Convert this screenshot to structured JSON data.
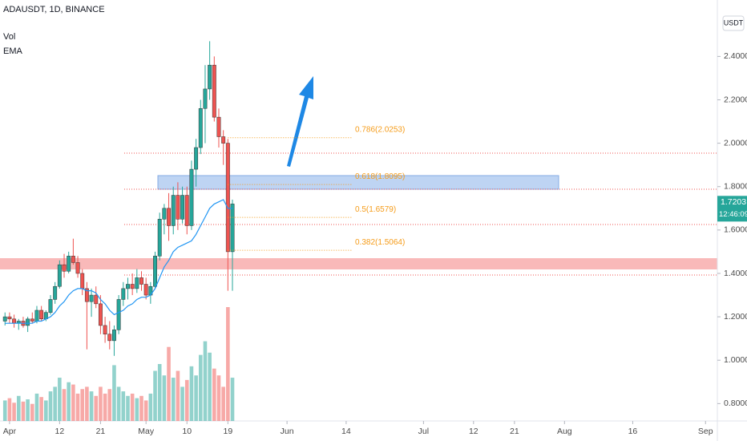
{
  "chart_data": {
    "type": "candlestick",
    "title": "ADAUSDT, 1D, BINANCE",
    "indicators": [
      "Vol",
      "EMA"
    ],
    "currency": "USDT",
    "last_price": {
      "value": 1.7203,
      "label": "1.7203"
    },
    "countdown": "12:46:09",
    "up_color": "#26a69a",
    "down_color": "#ef5350",
    "x": [
      -1,
      0,
      1,
      2,
      3,
      4,
      5,
      6,
      7,
      8,
      9,
      10,
      11,
      12,
      13,
      14,
      15,
      16,
      17,
      18,
      19,
      20,
      21,
      22,
      23,
      24,
      25,
      26,
      27,
      28,
      29,
      30,
      31,
      32,
      33,
      34,
      35,
      36,
      37,
      38,
      39,
      40,
      41,
      42,
      43,
      44,
      45,
      46,
      47,
      48,
      49
    ],
    "open": [
      1.18,
      1.2,
      1.19,
      1.17,
      1.18,
      1.16,
      1.19,
      1.18,
      1.23,
      1.19,
      1.22,
      1.28,
      1.34,
      1.44,
      1.41,
      1.48,
      1.45,
      1.4,
      1.33,
      1.27,
      1.3,
      1.26,
      1.16,
      1.12,
      1.09,
      1.14,
      1.28,
      1.33,
      1.35,
      1.33,
      1.38,
      1.35,
      1.3,
      1.34,
      1.48,
      1.65,
      1.7,
      1.62,
      1.76,
      1.65,
      1.76,
      1.62,
      1.88,
      1.98,
      2.16,
      2.25,
      2.36,
      2.12,
      2.03,
      2.0,
      1.5
    ],
    "high": [
      1.22,
      1.22,
      1.21,
      1.19,
      1.2,
      1.2,
      1.22,
      1.25,
      1.25,
      1.23,
      1.3,
      1.36,
      1.46,
      1.49,
      1.5,
      1.56,
      1.48,
      1.42,
      1.36,
      1.33,
      1.34,
      1.3,
      1.2,
      1.18,
      1.16,
      1.3,
      1.36,
      1.38,
      1.4,
      1.42,
      1.41,
      1.38,
      1.36,
      1.5,
      1.68,
      1.72,
      1.77,
      1.8,
      1.82,
      1.8,
      1.8,
      1.92,
      2.02,
      2.2,
      2.36,
      2.47,
      2.4,
      2.16,
      2.06,
      2.02,
      1.74
    ],
    "low": [
      1.16,
      1.17,
      1.15,
      1.14,
      1.15,
      1.13,
      1.17,
      1.17,
      1.18,
      1.18,
      1.21,
      1.26,
      1.33,
      1.38,
      1.4,
      1.44,
      1.38,
      1.3,
      1.05,
      1.2,
      1.24,
      1.12,
      1.08,
      1.05,
      1.02,
      1.12,
      1.25,
      1.28,
      1.3,
      1.31,
      1.32,
      1.28,
      1.26,
      1.33,
      1.46,
      1.58,
      1.55,
      1.58,
      1.6,
      1.63,
      1.58,
      1.6,
      1.8,
      1.95,
      2.0,
      2.2,
      2.1,
      1.98,
      1.9,
      1.32,
      1.32
    ],
    "close": [
      1.2,
      1.19,
      1.17,
      1.18,
      1.16,
      1.19,
      1.18,
      1.23,
      1.19,
      1.22,
      1.28,
      1.34,
      1.44,
      1.41,
      1.48,
      1.45,
      1.4,
      1.33,
      1.27,
      1.3,
      1.26,
      1.16,
      1.12,
      1.09,
      1.14,
      1.28,
      1.33,
      1.35,
      1.33,
      1.38,
      1.35,
      1.3,
      1.34,
      1.48,
      1.65,
      1.7,
      1.62,
      1.76,
      1.65,
      1.76,
      1.62,
      1.88,
      1.98,
      2.16,
      2.25,
      2.36,
      2.12,
      2.03,
      2.0,
      1.5,
      1.72
    ],
    "volume": {
      "values": [
        18,
        20,
        16,
        22,
        17,
        19,
        15,
        24,
        21,
        18,
        26,
        30,
        38,
        28,
        34,
        32,
        24,
        28,
        30,
        26,
        22,
        30,
        24,
        28,
        49,
        30,
        26,
        22,
        24,
        20,
        22,
        18,
        24,
        44,
        50,
        40,
        65,
        38,
        44,
        30,
        36,
        48,
        40,
        58,
        70,
        60,
        46,
        40,
        30,
        100,
        38
      ],
      "max": 100
    },
    "ema": {
      "color": "#2196f3",
      "values": [
        1.17,
        1.17,
        1.17,
        1.17,
        1.17,
        1.17,
        1.17,
        1.18,
        1.18,
        1.19,
        1.2,
        1.22,
        1.25,
        1.27,
        1.3,
        1.32,
        1.33,
        1.33,
        1.32,
        1.32,
        1.31,
        1.28,
        1.26,
        1.23,
        1.21,
        1.22,
        1.23,
        1.25,
        1.26,
        1.28,
        1.29,
        1.29,
        1.3,
        1.33,
        1.38,
        1.43,
        1.46,
        1.5,
        1.52,
        1.53,
        1.54,
        1.55,
        1.58,
        1.62,
        1.66,
        1.7,
        1.72,
        1.73,
        1.74,
        1.7,
        1.7
      ]
    },
    "fib_levels": [
      {
        "value": 2.0253,
        "label": "0.786(2.0253)"
      },
      {
        "value": 1.8095,
        "label": "0.618(1.8095)"
      },
      {
        "value": 1.6579,
        "label": "0.5(1.6579)"
      },
      {
        "value": 1.5064,
        "label": "0.382(1.5064)"
      }
    ],
    "xlim": [
      -2.1,
      155.6
    ],
    "ylim": [
      0.72,
      2.66
    ],
    "xticks": [
      {
        "value": 0,
        "label": "Apr"
      },
      {
        "value": 11,
        "label": "12"
      },
      {
        "value": 20,
        "label": "21"
      },
      {
        "value": 30,
        "label": "May"
      },
      {
        "value": 39,
        "label": "10"
      },
      {
        "value": 48,
        "label": "19"
      },
      {
        "value": 61,
        "label": "Jun"
      },
      {
        "value": 74,
        "label": "14"
      },
      {
        "value": 91,
        "label": "Jul"
      },
      {
        "value": 102,
        "label": "12"
      },
      {
        "value": 111,
        "label": "21"
      },
      {
        "value": 122,
        "label": "Aug"
      },
      {
        "value": 137,
        "label": "16"
      },
      {
        "value": 153,
        "label": "Sep"
      }
    ],
    "yticks": [
      {
        "value": 0.8,
        "label": "0.8000"
      },
      {
        "value": 1.0,
        "label": "1.0000"
      },
      {
        "value": 1.2,
        "label": "1.2000"
      },
      {
        "value": 1.4,
        "label": "1.4000"
      },
      {
        "value": 1.6,
        "label": "1.6000"
      },
      {
        "value": 1.8,
        "label": "1.8000"
      },
      {
        "value": 2.0,
        "label": "2.0000"
      },
      {
        "value": 2.2,
        "label": "2.2000"
      },
      {
        "value": 2.4,
        "label": "2.4000"
      }
    ]
  }
}
